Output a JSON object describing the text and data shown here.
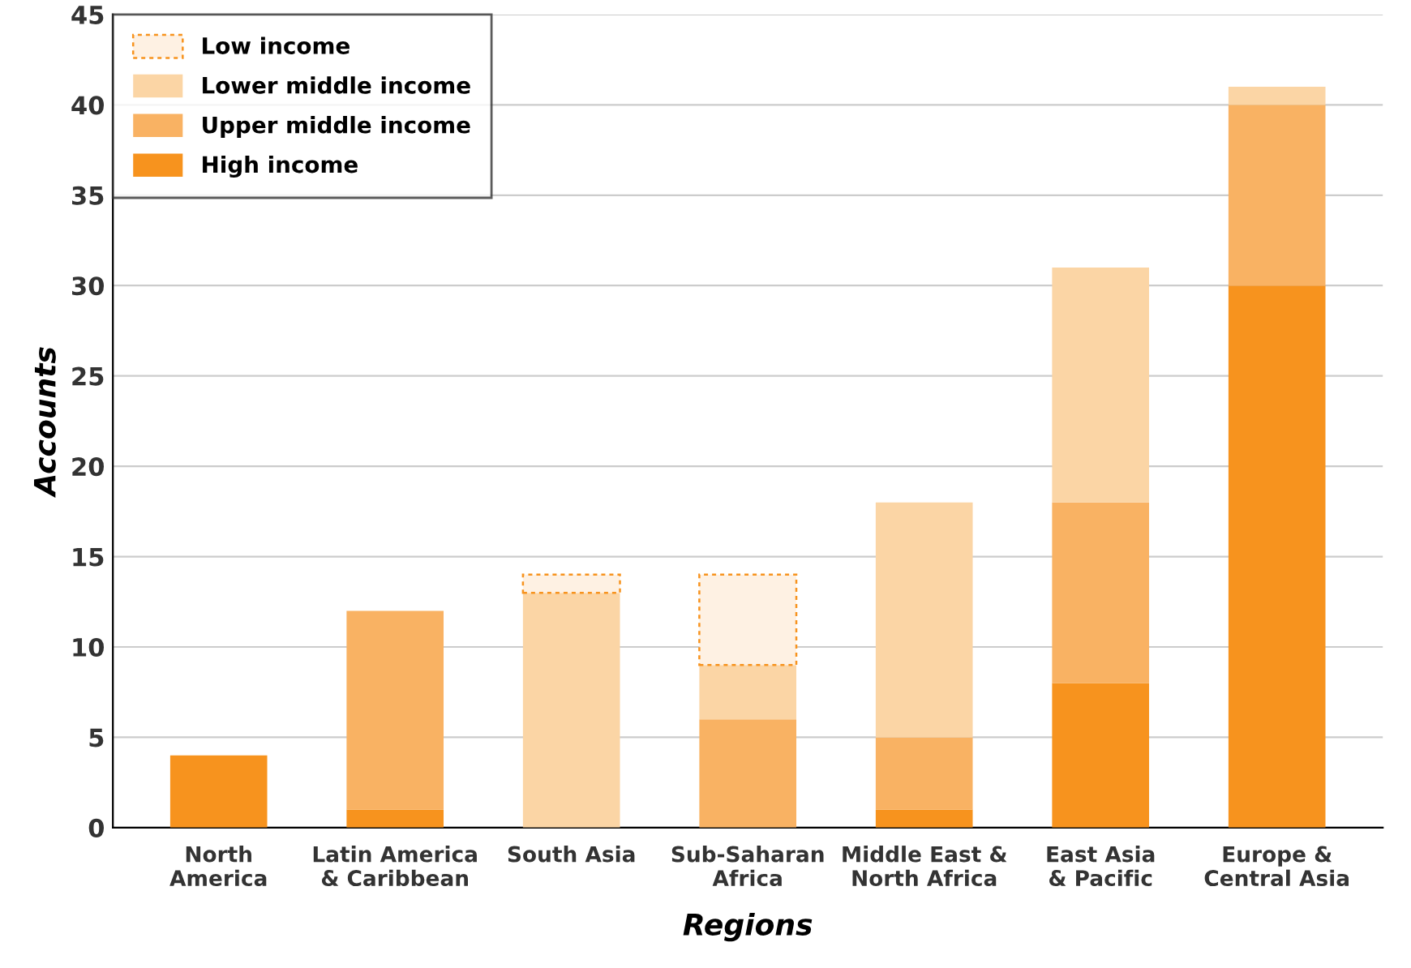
{
  "chart_data": {
    "type": "bar",
    "stacked": true,
    "xlabel": "Regions",
    "ylabel": "Accounts",
    "categories": [
      "North\nAmerica",
      "Latin America\n& Caribbean",
      "South Asia",
      "Sub-Saharan\nAfrica",
      "Middle East &\nNorth Africa",
      "East Asia\n& Pacific",
      "Europe &\nCentral Asia"
    ],
    "series": [
      {
        "name": "High income",
        "color": "#f7931e",
        "values": [
          4,
          1,
          null,
          null,
          1,
          8,
          30
        ]
      },
      {
        "name": "Upper middle income",
        "color": "#f9b263",
        "values": [
          null,
          11,
          null,
          6,
          4,
          10,
          10
        ]
      },
      {
        "name": "Lower middle income",
        "color": "#fbd5a5",
        "values": [
          null,
          null,
          13,
          3,
          13,
          13,
          1
        ]
      },
      {
        "name": "Low income",
        "color": "#fef1e3",
        "line_style": "dashed",
        "values": [
          null,
          null,
          1,
          5,
          null,
          null,
          null
        ]
      }
    ],
    "ylim": [
      0,
      45
    ],
    "yticks": [
      0,
      5,
      10,
      15,
      20,
      25,
      30,
      35,
      40,
      45
    ],
    "grid": "y",
    "legend": "top left"
  }
}
